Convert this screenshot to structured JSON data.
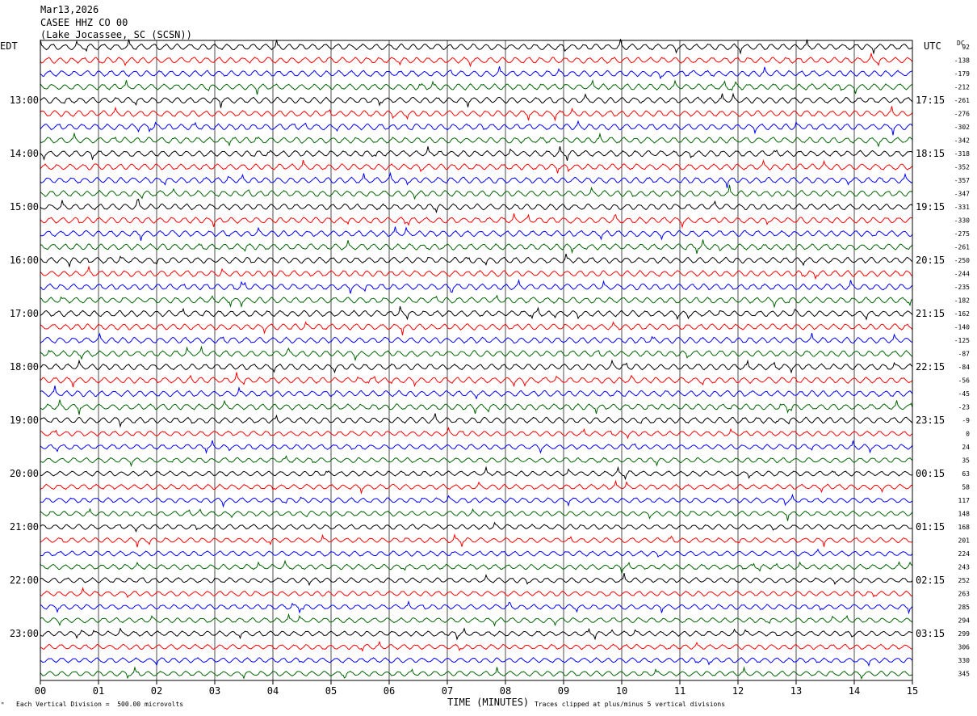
{
  "header": {
    "date": "Mar13,2026",
    "station": "CASEE HHZ CO 00",
    "location": "(Lake Jocassee, SC (SCSN))"
  },
  "chart_data": {
    "type": "line",
    "left_timezone": "EDT",
    "right_timezone": "UTC",
    "dc_header": "DC",
    "xlabel": "TIME (MINUTES)",
    "xlim": [
      0,
      15
    ],
    "x_ticks": [
      "00",
      "01",
      "02",
      "03",
      "04",
      "05",
      "06",
      "07",
      "08",
      "09",
      "10",
      "11",
      "12",
      "13",
      "14",
      "15"
    ],
    "left_hour_labels": [
      "13:00",
      "14:00",
      "15:00",
      "16:00",
      "17:00",
      "18:00",
      "19:00",
      "20:00",
      "21:00",
      "22:00",
      "23:00"
    ],
    "right_hour_labels": [
      "17:15",
      "18:15",
      "19:15",
      "20:15",
      "21:15",
      "22:15",
      "23:15",
      "00:15",
      "01:15",
      "02:15",
      "03:15"
    ],
    "dc_values": [
      "92",
      "-138",
      "-179",
      "-212",
      "-261",
      "-276",
      "-302",
      "-342",
      "-318",
      "-352",
      "-357",
      "-347",
      "-331",
      "-330",
      "-275",
      "-261",
      "-250",
      "-244",
      "-235",
      "-182",
      "-162",
      "-140",
      "-125",
      "-87",
      "-84",
      "-56",
      "-45",
      "-23",
      "-9",
      "0",
      "24",
      "35",
      "63",
      "58",
      "117",
      "148",
      "168",
      "201",
      "224",
      "243",
      "252",
      "263",
      "285",
      "294",
      "299",
      "306",
      "330",
      "345"
    ],
    "trace_colors": [
      "#000000",
      "#ff0000",
      "#0000ff",
      "#006400"
    ],
    "footer_left": "Each Vertical Division =  500.00 microvolts",
    "footer_right": "Traces clipped at plus/minus 5 vertical divisions"
  }
}
